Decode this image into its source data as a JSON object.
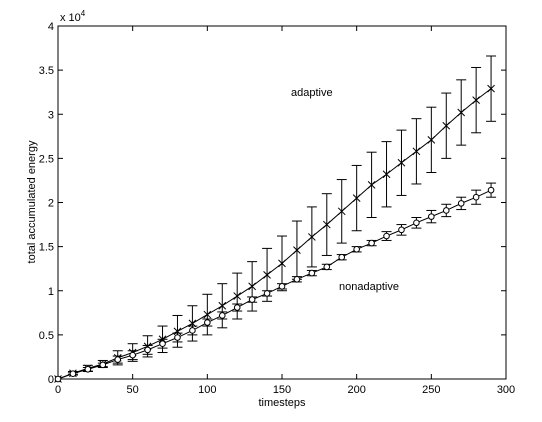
{
  "chart_data": {
    "type": "line",
    "xlabel": "timesteps",
    "ylabel": "total accumulated energy",
    "xlim": [
      0,
      300
    ],
    "ylim": [
      0,
      40000
    ],
    "y_multiplier": "x 10",
    "y_multiplier_exp": "4",
    "xticks": [
      0,
      50,
      100,
      150,
      200,
      250,
      300
    ],
    "yticks": [
      0,
      0.5,
      1,
      1.5,
      2,
      2.5,
      3,
      3.5,
      4
    ],
    "grid": false,
    "annotations": [
      "adaptive",
      "nonadaptive"
    ],
    "x": [
      0,
      10,
      20,
      30,
      40,
      50,
      60,
      70,
      80,
      90,
      100,
      110,
      120,
      130,
      140,
      150,
      160,
      170,
      180,
      190,
      200,
      210,
      220,
      230,
      240,
      250,
      260,
      270,
      280,
      290
    ],
    "series": [
      {
        "marker": "x",
        "values": [
          0,
          650,
          1200,
          1700,
          2400,
          3000,
          3700,
          4500,
          5400,
          6300,
          7300,
          8300,
          9400,
          10500,
          11800,
          13100,
          14600,
          16100,
          17500,
          19000,
          20500,
          22000,
          23200,
          24500,
          25800,
          27100,
          28700,
          30200,
          31600,
          32900
        ],
        "errors": [
          0,
          200,
          350,
          400,
          800,
          1000,
          1200,
          1500,
          1800,
          2000,
          2300,
          2500,
          2600,
          2800,
          3000,
          3100,
          3300,
          3400,
          3500,
          3600,
          3700,
          3700,
          3700,
          3700,
          3700,
          3700,
          3700,
          3700,
          3700,
          3700
        ]
      },
      {
        "marker": "o",
        "values": [
          0,
          600,
          1100,
          1600,
          2200,
          2700,
          3300,
          4000,
          4700,
          5500,
          6400,
          7200,
          8100,
          9000,
          9700,
          10500,
          11300,
          12000,
          12700,
          13800,
          14700,
          15400,
          16200,
          16900,
          17700,
          18400,
          19100,
          19900,
          20600,
          21400
        ],
        "errors": [
          0,
          100,
          200,
          200,
          400,
          500,
          500,
          500,
          500,
          500,
          400,
          400,
          400,
          300,
          300,
          300,
          300,
          300,
          300,
          300,
          300,
          300,
          500,
          600,
          600,
          700,
          700,
          700,
          800,
          800
        ]
      }
    ]
  }
}
